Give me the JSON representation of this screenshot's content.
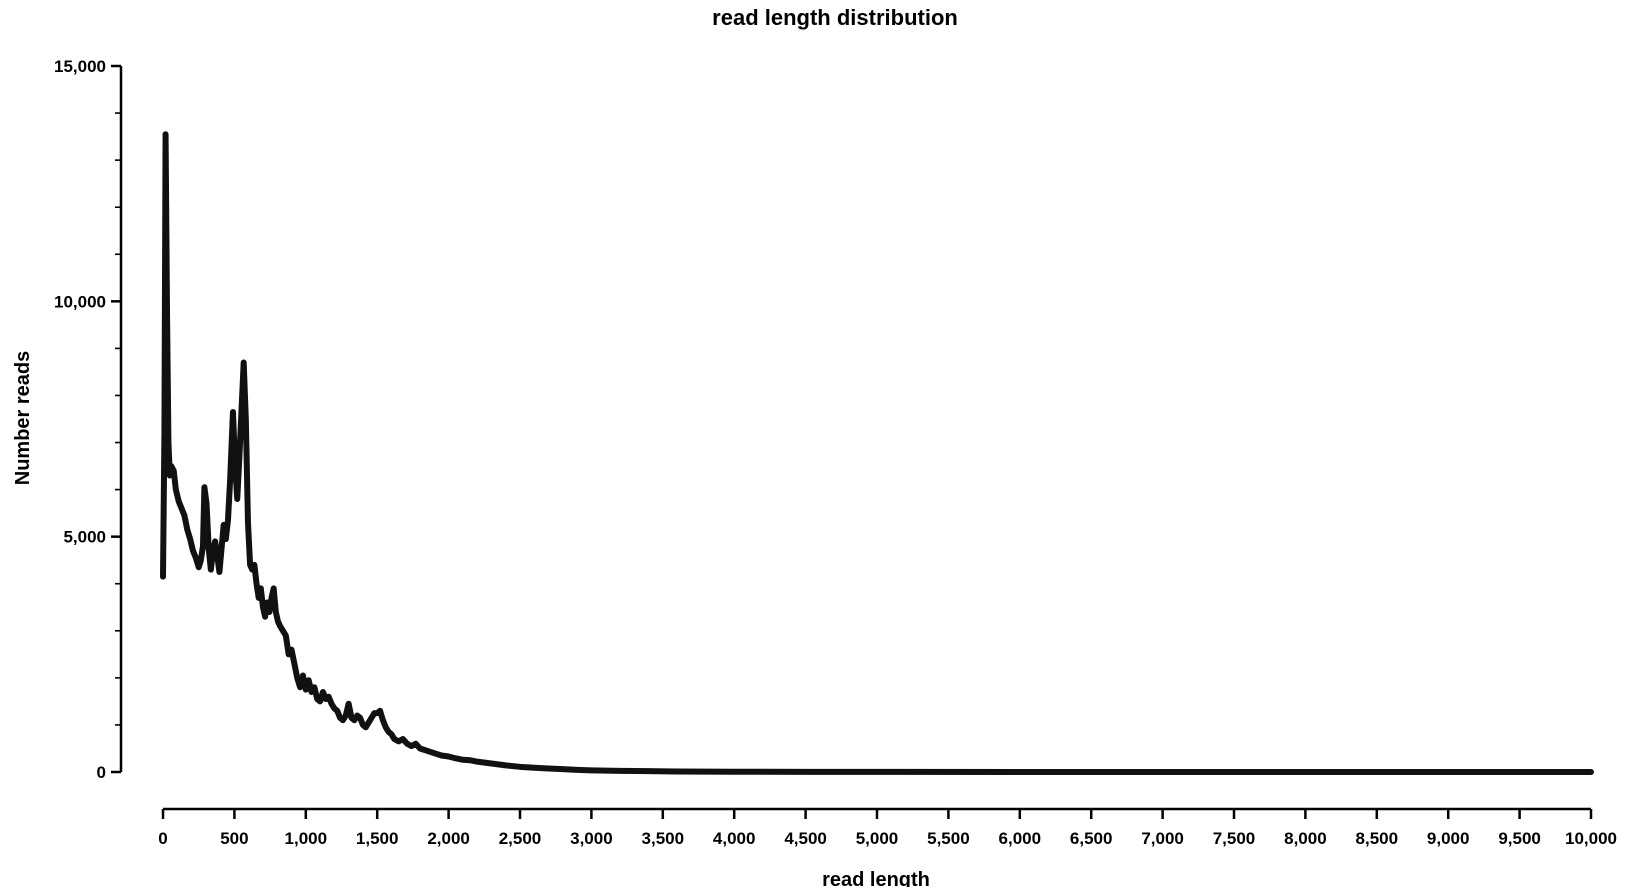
{
  "chart_data": {
    "type": "line",
    "title": "read length distribution",
    "xlabel": "read length",
    "ylabel": "Number reads",
    "xlim": [
      0,
      10000
    ],
    "ylim": [
      0,
      15000
    ],
    "x_ticks": [
      "0",
      "500",
      "1,000",
      "1,500",
      "2,000",
      "2,500",
      "3,000",
      "3,500",
      "4,000",
      "4,500",
      "5,000",
      "5,500",
      "6,000",
      "6,500",
      "7,000",
      "7,500",
      "8,000",
      "8,500",
      "9,000",
      "9,500",
      "10,000"
    ],
    "y_ticks": [
      "0",
      "5,000",
      "10,000",
      "15,000"
    ],
    "grid": false,
    "series": [
      {
        "color": "#111111",
        "points": [
          [
            0,
            4150
          ],
          [
            10,
            7200
          ],
          [
            18,
            13550
          ],
          [
            28,
            9800
          ],
          [
            38,
            7000
          ],
          [
            48,
            6300
          ],
          [
            58,
            6500
          ],
          [
            75,
            6400
          ],
          [
            90,
            6000
          ],
          [
            110,
            5750
          ],
          [
            130,
            5600
          ],
          [
            150,
            5450
          ],
          [
            170,
            5150
          ],
          [
            190,
            4950
          ],
          [
            210,
            4700
          ],
          [
            230,
            4550
          ],
          [
            250,
            4350
          ],
          [
            265,
            4500
          ],
          [
            280,
            4800
          ],
          [
            290,
            6050
          ],
          [
            305,
            5700
          ],
          [
            320,
            4750
          ],
          [
            335,
            4300
          ],
          [
            350,
            4700
          ],
          [
            365,
            4900
          ],
          [
            380,
            4600
          ],
          [
            395,
            4250
          ],
          [
            410,
            4750
          ],
          [
            425,
            5250
          ],
          [
            440,
            4950
          ],
          [
            455,
            5350
          ],
          [
            470,
            6200
          ],
          [
            490,
            7650
          ],
          [
            505,
            6500
          ],
          [
            520,
            5800
          ],
          [
            535,
            6700
          ],
          [
            550,
            7700
          ],
          [
            565,
            8700
          ],
          [
            580,
            7500
          ],
          [
            595,
            5300
          ],
          [
            610,
            4400
          ],
          [
            625,
            4300
          ],
          [
            640,
            4400
          ],
          [
            655,
            4000
          ],
          [
            670,
            3700
          ],
          [
            685,
            3900
          ],
          [
            700,
            3500
          ],
          [
            715,
            3300
          ],
          [
            730,
            3600
          ],
          [
            745,
            3400
          ],
          [
            760,
            3700
          ],
          [
            775,
            3900
          ],
          [
            790,
            3400
          ],
          [
            805,
            3200
          ],
          [
            820,
            3100
          ],
          [
            840,
            3000
          ],
          [
            860,
            2900
          ],
          [
            880,
            2500
          ],
          [
            900,
            2600
          ],
          [
            920,
            2300
          ],
          [
            940,
            2000
          ],
          [
            960,
            1800
          ],
          [
            980,
            2050
          ],
          [
            1000,
            1750
          ],
          [
            1020,
            1950
          ],
          [
            1040,
            1700
          ],
          [
            1060,
            1800
          ],
          [
            1080,
            1550
          ],
          [
            1100,
            1500
          ],
          [
            1120,
            1700
          ],
          [
            1140,
            1550
          ],
          [
            1160,
            1600
          ],
          [
            1180,
            1450
          ],
          [
            1200,
            1350
          ],
          [
            1220,
            1300
          ],
          [
            1240,
            1150
          ],
          [
            1260,
            1100
          ],
          [
            1280,
            1200
          ],
          [
            1300,
            1450
          ],
          [
            1320,
            1150
          ],
          [
            1340,
            1100
          ],
          [
            1360,
            1200
          ],
          [
            1380,
            1150
          ],
          [
            1400,
            1000
          ],
          [
            1420,
            950
          ],
          [
            1440,
            1050
          ],
          [
            1460,
            1150
          ],
          [
            1480,
            1250
          ],
          [
            1500,
            1250
          ],
          [
            1520,
            1300
          ],
          [
            1540,
            1100
          ],
          [
            1560,
            950
          ],
          [
            1580,
            850
          ],
          [
            1600,
            800
          ],
          [
            1620,
            700
          ],
          [
            1650,
            650
          ],
          [
            1680,
            700
          ],
          [
            1710,
            600
          ],
          [
            1740,
            550
          ],
          [
            1770,
            600
          ],
          [
            1800,
            500
          ],
          [
            1850,
            450
          ],
          [
            1900,
            400
          ],
          [
            1950,
            350
          ],
          [
            2000,
            330
          ],
          [
            2050,
            290
          ],
          [
            2100,
            260
          ],
          [
            2150,
            250
          ],
          [
            2200,
            220
          ],
          [
            2300,
            180
          ],
          [
            2400,
            140
          ],
          [
            2500,
            110
          ],
          [
            2600,
            90
          ],
          [
            2700,
            75
          ],
          [
            2800,
            60
          ],
          [
            2900,
            45
          ],
          [
            3000,
            35
          ],
          [
            3200,
            25
          ],
          [
            3400,
            18
          ],
          [
            3600,
            12
          ],
          [
            3800,
            8
          ],
          [
            4000,
            5
          ],
          [
            4500,
            3
          ],
          [
            5000,
            2
          ],
          [
            6000,
            1
          ],
          [
            7000,
            1
          ],
          [
            8000,
            0
          ],
          [
            9000,
            0
          ],
          [
            10000,
            0
          ]
        ]
      }
    ]
  }
}
